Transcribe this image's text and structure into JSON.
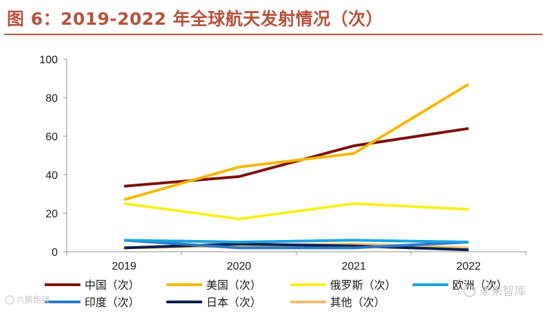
{
  "figure": {
    "title": "图 6：2019-2022 年全球航天发射情况（次）"
  },
  "chart_data": {
    "type": "line",
    "title": "图 6：2019-2022 年全球航天发射情况（次）",
    "xlabel": "",
    "ylabel": "",
    "categories": [
      "2019",
      "2020",
      "2021",
      "2022"
    ],
    "ylim": [
      0,
      100
    ],
    "yticks": [
      0,
      20,
      40,
      60,
      80,
      100
    ],
    "grid": false,
    "legend_position": "bottom",
    "series": [
      {
        "name": "中国（次）",
        "color": "#7b1010",
        "values": [
          34,
          39,
          55,
          64
        ]
      },
      {
        "name": "美国（次）",
        "color": "#f5b800",
        "values": [
          27,
          44,
          51,
          87
        ]
      },
      {
        "name": "俄罗斯（次）",
        "color": "#f7f020",
        "values": [
          25,
          17,
          25,
          22
        ]
      },
      {
        "name": "欧洲（次）",
        "color": "#1aa3e0",
        "values": [
          6,
          5,
          6,
          5
        ]
      },
      {
        "name": "印度（次）",
        "color": "#2b78c8",
        "values": [
          6,
          2,
          2,
          5
        ]
      },
      {
        "name": "日本（次）",
        "color": "#0b1e4a",
        "values": [
          2,
          4,
          3,
          1
        ]
      },
      {
        "name": "其他（次）",
        "color": "#f0c070",
        "values": [
          2,
          3,
          4,
          2
        ]
      }
    ]
  },
  "watermarks": {
    "right": "未来智库",
    "left": "六鹏跑镜"
  }
}
